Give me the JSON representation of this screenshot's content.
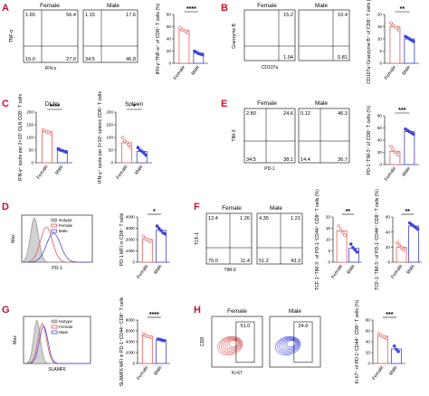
{
  "theme": {
    "female": "#e05a5a",
    "male": "#4a4ee0",
    "female_dot": "#e0605a",
    "male_dot": "#3d45d8",
    "isotype": "#9a9a9a",
    "panel_label": "#c8102e"
  },
  "panels": {
    "A": {
      "label": "A",
      "groups": [
        "Female",
        "Male"
      ],
      "flow": {
        "ylabel": "TNF-α",
        "xlabel": "IFN-γ",
        "female_quadrants": [
          "1.65",
          "56.4",
          "15.0",
          "27.0"
        ],
        "male_quadrants": [
          "1.15",
          "17.6",
          "34.5",
          "46.8"
        ]
      },
      "scatter": {
        "ylabel": "IFN-γ⁺TNF-α⁺ of CD8⁺ T cells (%)",
        "yticks": [
          "0",
          "20",
          "40",
          "60",
          "80"
        ],
        "sig": "****"
      }
    },
    "B": {
      "label": "B",
      "groups": [
        "Female",
        "Male"
      ],
      "flow": {
        "ylabel": "Granzyme B",
        "xlabel": "CD107a",
        "female_quadrants": [
          "",
          "15.2",
          "",
          "1.04"
        ],
        "male_quadrants": [
          "",
          "10.4",
          "",
          "0.81"
        ]
      },
      "scatter": {
        "ylabel": "CD107a⁺Granzyme B⁺ of CD8⁺ T cells (%)",
        "yticks": [
          "0",
          "5",
          "10",
          "15",
          "20"
        ],
        "sig": "**"
      }
    },
    "C": {
      "label": "C",
      "left": {
        "title": "DLNs",
        "ylabel": "IFN-γ⁺ spots per 2×10⁵ DLN CD8⁺ T cells",
        "yticks": [
          "0",
          "50",
          "100",
          "150",
          "200"
        ],
        "sig": "****"
      },
      "right": {
        "title": "Spleen",
        "ylabel": "IFN-γ⁺ spots per 2×10⁵ splenic CD8⁺ T cells",
        "yticks": [
          "0",
          "50",
          "100",
          "150",
          "200"
        ],
        "sig": "*"
      }
    },
    "D": {
      "label": "D",
      "hist": {
        "ylabel": "Max",
        "xlabel": "PD-1",
        "legend": [
          "Isotype",
          "Female",
          "Male"
        ]
      },
      "scatter": {
        "ylabel": "PD-1 MFI in CD8⁺ T cells",
        "yticks": [
          "0",
          "1000",
          "2000",
          "3000",
          "4000"
        ],
        "sig": "*"
      }
    },
    "E": {
      "label": "E",
      "groups": [
        "Female",
        "Male"
      ],
      "flow": {
        "ylabel": "TIM-3",
        "xlabel": "PD-1",
        "female_quadrants": [
          "2.80",
          "24.6",
          "34.5",
          "38.1"
        ],
        "male_quadrants": [
          "0.12",
          "46.3",
          "14.4",
          "36.7"
        ]
      },
      "scatter": {
        "ylabel": "PD-1⁺TIM-3⁺ of CD8⁺ T cells (%)",
        "yticks": [
          "0",
          "20",
          "40",
          "60",
          "80"
        ],
        "sig": "***"
      }
    },
    "F": {
      "label": "F",
      "groups": [
        "Female",
        "Male"
      ],
      "flow": {
        "ylabel": "TCF-1",
        "xlabel": "TIM-3",
        "female_quadrants": [
          "12.4",
          "1.26",
          "75.0",
          "11.4"
        ],
        "male_quadrants": [
          "4.35",
          "1.21",
          "51.2",
          "43.3"
        ]
      },
      "scatter1": {
        "ylabel": "TCF-1⁺TIM-3⁻ of PD-1⁺CD44⁺ CD8⁺ T cells (%)",
        "yticks": [
          "0",
          "5",
          "10",
          "15",
          "20"
        ],
        "sig": "**"
      },
      "scatter2": {
        "ylabel": "TCF-1⁻TIM-3⁺ of PD-1⁺CD44⁺ CD8⁺ T cells (%)",
        "yticks": [
          "0",
          "20",
          "40",
          "60"
        ],
        "sig": "**"
      }
    },
    "G": {
      "label": "G",
      "hist": {
        "ylabel": "Max",
        "xlabel": "SLAMF6",
        "legend": [
          "Isotype",
          "Female",
          "Male"
        ]
      },
      "scatter": {
        "ylabel": "SLAMF6 MFI in PD-1⁺CD44⁺ CD8⁺ T cells",
        "yticks": [
          "0",
          "2000",
          "4000",
          "6000",
          "8000"
        ],
        "sig": "****"
      }
    },
    "H": {
      "label": "H",
      "groups": [
        "Female",
        "Male"
      ],
      "flow": {
        "ylabel": "CD8",
        "xlabel": "Ki-67",
        "female_gate": "51.0",
        "male_gate": "24.6"
      },
      "scatter": {
        "ylabel": "Ki-67⁺ of PD-1⁺CD44⁺ CD8⁺ T cells (%)",
        "yticks": [
          "0",
          "20",
          "40",
          "60",
          "80"
        ],
        "sig": "***"
      }
    },
    "axis_tick_low": "0",
    "axis_tick_hi": "10⁵",
    "xcats": [
      "Female",
      "Male"
    ]
  },
  "chart_data": [
    {
      "type": "scatter",
      "panel": "A",
      "ylim": [
        0,
        80
      ],
      "series": [
        {
          "name": "Female",
          "values": [
            58,
            55,
            54,
            52,
            50
          ]
        },
        {
          "name": "Male",
          "values": [
            20,
            18,
            16,
            15,
            14
          ]
        }
      ]
    },
    {
      "type": "scatter",
      "panel": "B",
      "ylim": [
        0,
        20
      ],
      "series": [
        {
          "name": "Female",
          "values": [
            16.5,
            15.5,
            15,
            14.5,
            13.5
          ]
        },
        {
          "name": "Male",
          "values": [
            11,
            10.5,
            10,
            9.5,
            9
          ]
        }
      ]
    },
    {
      "type": "scatter",
      "panel": "C-DLNs",
      "ylim": [
        0,
        200
      ],
      "series": [
        {
          "name": "Female",
          "values": [
            130,
            125,
            122,
            120,
            115
          ]
        },
        {
          "name": "Male",
          "values": [
            55,
            50,
            48,
            45,
            42
          ]
        }
      ]
    },
    {
      "type": "scatter",
      "panel": "C-Spleen",
      "ylim": [
        0,
        200
      ],
      "series": [
        {
          "name": "Female",
          "values": [
            100,
            85,
            80,
            70,
            60
          ]
        },
        {
          "name": "Male",
          "values": [
            60,
            50,
            45,
            38,
            30
          ]
        }
      ]
    },
    {
      "type": "scatter",
      "panel": "D",
      "ylim": [
        0,
        4000
      ],
      "series": [
        {
          "name": "Female",
          "values": [
            2300,
            2100,
            2000,
            1900,
            1800
          ]
        },
        {
          "name": "Male",
          "values": [
            3200,
            3000,
            2800,
            2600,
            2500
          ]
        }
      ]
    },
    {
      "type": "scatter",
      "panel": "E",
      "ylim": [
        0,
        80
      ],
      "series": [
        {
          "name": "Female",
          "values": [
            30,
            25,
            20,
            18,
            16
          ]
        },
        {
          "name": "Male",
          "values": [
            58,
            56,
            54,
            52,
            50
          ]
        }
      ]
    },
    {
      "type": "scatter",
      "panel": "F-1",
      "ylim": [
        0,
        20
      ],
      "series": [
        {
          "name": "Female",
          "values": [
            16,
            14.5,
            13,
            12
          ]
        },
        {
          "name": "Male",
          "values": [
            8,
            6.5,
            5.5,
            4.5
          ]
        }
      ]
    },
    {
      "type": "scatter",
      "panel": "F-2",
      "ylim": [
        0,
        60
      ],
      "series": [
        {
          "name": "Female",
          "values": [
            26,
            22,
            19,
            17,
            16
          ]
        },
        {
          "name": "Male",
          "values": [
            52,
            50,
            48,
            46,
            44
          ]
        }
      ]
    },
    {
      "type": "scatter",
      "panel": "G",
      "ylim": [
        0,
        8000
      ],
      "series": [
        {
          "name": "Female",
          "values": [
            5400,
            5200,
            5000,
            4900,
            4800
          ]
        },
        {
          "name": "Male",
          "values": [
            4500,
            4400,
            4300,
            4200
          ]
        }
      ]
    },
    {
      "type": "scatter",
      "panel": "H",
      "ylim": [
        0,
        80
      ],
      "series": [
        {
          "name": "Female",
          "values": [
            55,
            52,
            50,
            48,
            46
          ]
        },
        {
          "name": "Male",
          "values": [
            32,
            26,
            22
          ]
        }
      ]
    }
  ]
}
